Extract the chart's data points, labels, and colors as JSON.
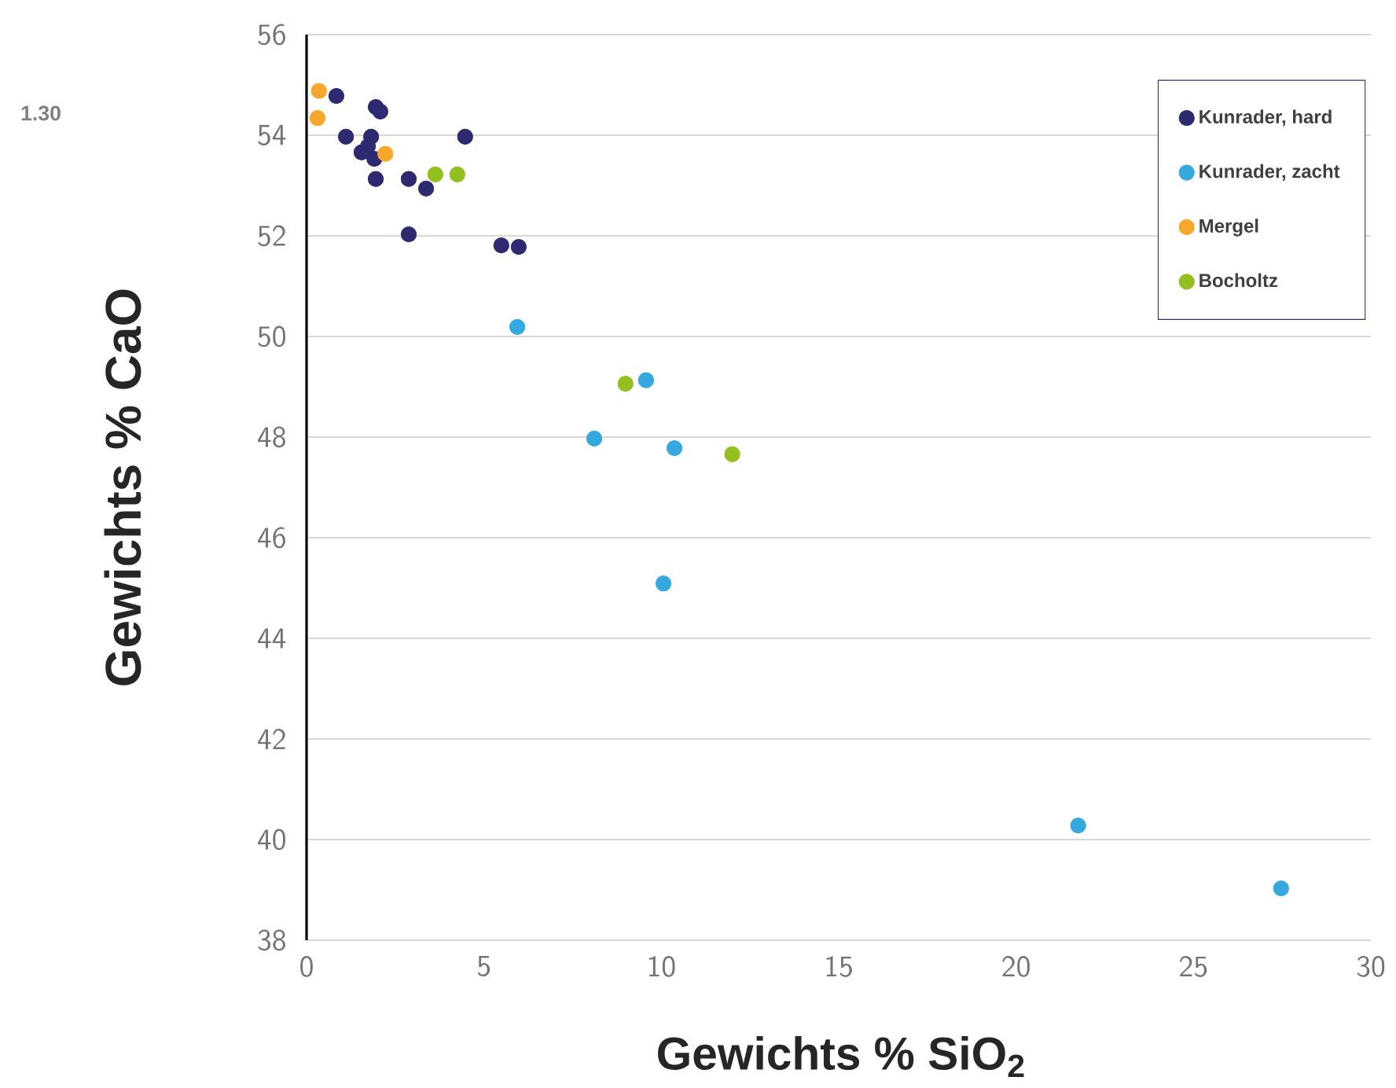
{
  "chart_data": {
    "type": "scatter",
    "xlabel": "Gewichts % SiO$_{2}$",
    "ylabel": "Gewichts % CaO",
    "annotations": [
      "1.30"
    ],
    "xlim": [
      0,
      30
    ],
    "ylim": [
      38,
      56
    ],
    "xticks": [
      0,
      5,
      10,
      15,
      20,
      25,
      30
    ],
    "yticks": [
      38,
      40,
      42,
      44,
      46,
      48,
      50,
      52,
      54,
      56
    ],
    "grid": "y",
    "legend": "top right",
    "marker": "circle",
    "series": [
      {
        "name": "Kunrader, hard",
        "color": "#2e2a72",
        "x": [
          0.84,
          1.95,
          2.08,
          1.11,
          1.82,
          1.73,
          1.55,
          1.91,
          1.95,
          2.88,
          3.37,
          4.47,
          2.88,
          5.49,
          5.98
        ],
        "values": [
          54.78,
          54.56,
          54.47,
          53.97,
          53.97,
          53.78,
          53.66,
          53.53,
          53.13,
          53.13,
          52.94,
          53.97,
          52.03,
          51.81,
          51.78
        ]
      },
      {
        "name": "Kunrader, zacht",
        "color": "#35a8e0",
        "x": [
          5.94,
          9.57,
          8.11,
          10.37,
          10.06,
          21.75,
          27.47
        ],
        "values": [
          50.19,
          49.13,
          47.97,
          47.78,
          45.09,
          40.28,
          39.03
        ]
      },
      {
        "name": "Mergel",
        "color": "#f9a72b",
        "x": [
          0.35,
          0.31,
          2.22
        ],
        "values": [
          54.88,
          54.34,
          53.63
        ]
      },
      {
        "name": "Bocholtz",
        "color": "#93c01f",
        "x": [
          3.63,
          4.25,
          8.99,
          12.0
        ],
        "values": [
          53.22,
          53.22,
          49.06,
          47.66
        ]
      }
    ]
  }
}
